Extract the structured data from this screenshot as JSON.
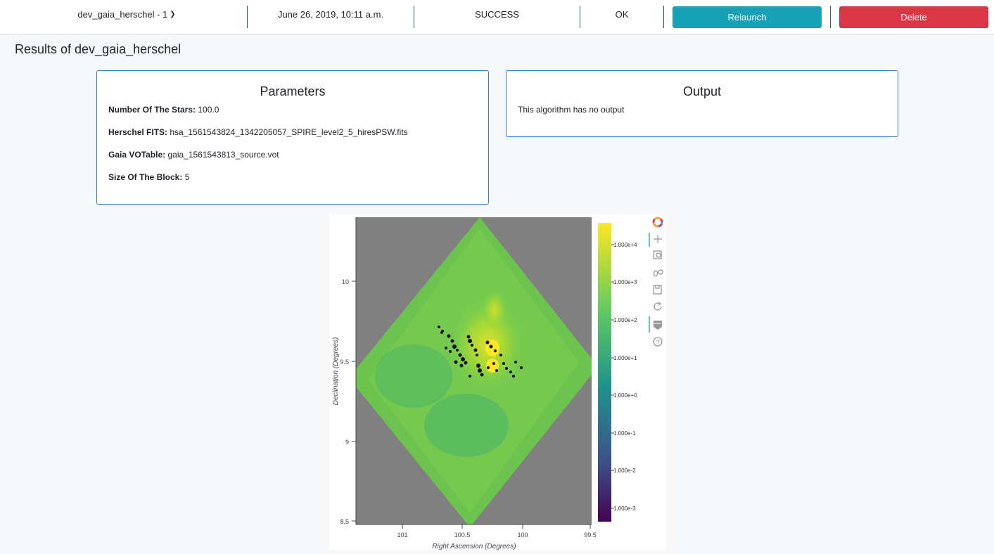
{
  "topbar": {
    "job_name": "dev_gaia_herschel - 1",
    "date": "June 26, 2019, 10:11 a.m.",
    "status": "SUCCESS",
    "result": "OK",
    "relaunch_label": "Relaunch",
    "delete_label": "Delete",
    "relaunch_color": "#17a2b8",
    "delete_color": "#dc3545"
  },
  "page": {
    "title": "Results of dev_gaia_herschel"
  },
  "parameters": {
    "title": "Parameters",
    "items": [
      {
        "label": "Number Of The Stars:",
        "value": "100.0"
      },
      {
        "label": "Herschel FITS:",
        "value": "hsa_1561543824_1342205057_SPIRE_level2_5_hiresPSW.fits"
      },
      {
        "label": "Gaia VOTable:",
        "value": "gaia_1561543813_source.vot"
      },
      {
        "label": "Size Of The Block:",
        "value": "5"
      }
    ]
  },
  "output": {
    "title": "Output",
    "text": "This algorithm has no output"
  },
  "plot": {
    "xlabel": "Right Ascension (Degrees)",
    "ylabel": "Declination (Degrees)",
    "xticks": [
      "101",
      "100.5",
      "100",
      "99.5"
    ],
    "yticks": [
      "10",
      "9.5",
      "9",
      "8.5"
    ],
    "colorbar_ticks": [
      "1.000e+4",
      "1.000e+3",
      "1.000e+2",
      "1.000e+1",
      "1.000e+0",
      "1.000e-1",
      "1.000e-2",
      "1.000e-3"
    ],
    "toolbar_icons": [
      "bokeh-logo-icon",
      "pan-icon",
      "box-zoom-icon",
      "wheel-zoom-icon",
      "save-icon",
      "reset-icon",
      "hover-icon",
      "help-icon"
    ]
  }
}
